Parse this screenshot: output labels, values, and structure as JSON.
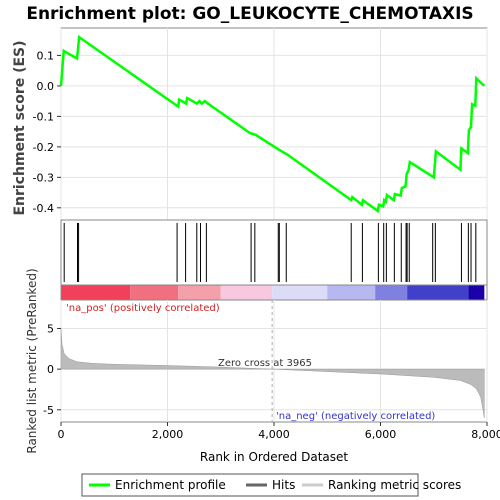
{
  "chart_data": {
    "type": "line",
    "title": "Enrichment plot: GO_LEUKOCYTE_CHEMOTAXIS",
    "ylabel_top": "Enrichment score (ES)",
    "ylabel_bottom": "Ranked list metric (PreRanked)",
    "xlabel": "Rank in Ordered Dataset",
    "xlim": [
      0,
      8000
    ],
    "x_ticks": [
      "0",
      "2,000",
      "4,000",
      "6,000",
      "8,000"
    ],
    "x_tick_values": [
      0,
      2000,
      4000,
      6000,
      8000
    ],
    "es_ylim": [
      -0.44,
      0.19
    ],
    "es_ticks": [
      "0.1",
      "0.0",
      "-0.1",
      "-0.2",
      "-0.3",
      "-0.4"
    ],
    "es_tick_values": [
      0.1,
      0.0,
      -0.1,
      -0.2,
      -0.3,
      -0.4
    ],
    "metric_ylim": [
      -6.5,
      8.5
    ],
    "metric_ticks": [
      "5",
      "0",
      "-5"
    ],
    "metric_tick_values": [
      5,
      0,
      -5
    ],
    "zero_cross_label": "Zero cross at 3965",
    "zero_cross": 3965,
    "pos_label": "'na_pos' (positively correlated)",
    "neg_label": "'na_neg' (negatively correlated)",
    "enrichment_profile": {
      "x": [
        0,
        50,
        300,
        320,
        340,
        2200,
        2220,
        2350,
        2370,
        2550,
        2600,
        2640,
        2700,
        2760,
        3550,
        3650,
        4100,
        4250,
        5450,
        5470,
        5650,
        5670,
        5950,
        5970,
        6050,
        6070,
        6100,
        6120,
        6250,
        6270,
        6380,
        6400,
        6470,
        6490,
        6530,
        6550,
        7000,
        7020,
        7040,
        7500,
        7520,
        7640,
        7660,
        7700,
        7720,
        7780,
        7800,
        7950
      ],
      "y": [
        0.0,
        0.115,
        0.09,
        0.12,
        0.16,
        -0.068,
        -0.045,
        -0.058,
        -0.04,
        -0.058,
        -0.05,
        -0.058,
        -0.05,
        -0.058,
        -0.155,
        -0.16,
        -0.21,
        -0.225,
        -0.375,
        -0.365,
        -0.39,
        -0.375,
        -0.41,
        -0.39,
        -0.395,
        -0.375,
        -0.38,
        -0.358,
        -0.375,
        -0.355,
        -0.36,
        -0.335,
        -0.33,
        -0.29,
        -0.275,
        -0.25,
        -0.3,
        -0.26,
        -0.215,
        -0.275,
        -0.205,
        -0.22,
        -0.145,
        -0.135,
        -0.06,
        -0.065,
        0.025,
        0.0
      ]
    },
    "hits": [
      60,
      310,
      330,
      2180,
      2340,
      2550,
      2620,
      2730,
      3570,
      3640,
      4080,
      4100,
      4230,
      5450,
      5660,
      5960,
      6060,
      6110,
      6260,
      6390,
      6480,
      6500,
      6540,
      6980,
      7030,
      7520,
      7650,
      7700,
      7790
    ],
    "heatmap_segments": [
      {
        "from": 0,
        "to": 1300,
        "color": "#f0405a"
      },
      {
        "from": 1300,
        "to": 2200,
        "color": "#f07080"
      },
      {
        "from": 2200,
        "to": 3000,
        "color": "#f4a0aa"
      },
      {
        "from": 3000,
        "to": 3965,
        "color": "#f8c8e0"
      },
      {
        "from": 3965,
        "to": 5000,
        "color": "#dcdcf8"
      },
      {
        "from": 5000,
        "to": 5900,
        "color": "#b8b8f0"
      },
      {
        "from": 5900,
        "to": 6500,
        "color": "#8080e0"
      },
      {
        "from": 6500,
        "to": 7650,
        "color": "#4040c8"
      },
      {
        "from": 7650,
        "to": 7950,
        "color": "#1a00a8"
      }
    ],
    "ranked_metric": {
      "x": [
        0,
        20,
        60,
        150,
        300,
        600,
        1000,
        2000,
        3000,
        3965,
        5000,
        6000,
        7000,
        7500,
        7700,
        7800,
        7880,
        7920,
        7950
      ],
      "y": [
        5.0,
        3.0,
        1.9,
        1.3,
        0.9,
        0.7,
        0.6,
        0.45,
        0.25,
        0.0,
        -0.3,
        -0.6,
        -1.0,
        -1.4,
        -1.9,
        -2.4,
        -3.4,
        -4.8,
        -6.0
      ]
    },
    "colors": {
      "profile": "#00ff00",
      "hits": "#000000",
      "metric_fill": "#bbbbbb"
    }
  },
  "legend": {
    "profile": "Enrichment profile",
    "hits": "Hits",
    "metric": "Ranking metric scores"
  }
}
